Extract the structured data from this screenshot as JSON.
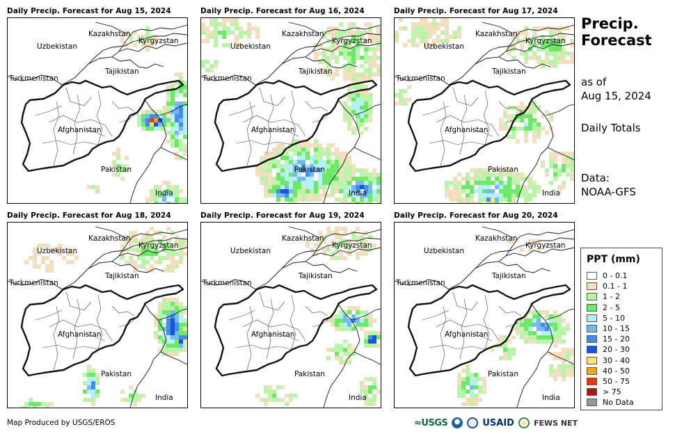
{
  "panels": [
    {
      "title": "Daily Precip. Forecast for Aug 15, 2024"
    },
    {
      "title": "Daily Precip. Forecast for Aug 16, 2024"
    },
    {
      "title": "Daily Precip. Forecast for Aug 17, 2024"
    },
    {
      "title": "Daily Precip. Forecast for Aug 18, 2024"
    },
    {
      "title": "Daily Precip. Forecast for Aug 19, 2024"
    },
    {
      "title": "Daily Precip. Forecast for Aug 20, 2024"
    }
  ],
  "countries": {
    "kazakhstan": "Kazakhstan",
    "uzbekistan": "Uzbekistan",
    "kyrgyzstan": "Kyrgyzstan",
    "tajikistan": "Tajikistan",
    "turkmenistan": "Turkmenistan",
    "afghanistan": "Afghanistan",
    "pakistan": "Pakistan",
    "india": "India"
  },
  "sidebar": {
    "title_line1": "Precip.",
    "title_line2": "Forecast",
    "asof_line1": "as of",
    "asof_line2": "Aug 15, 2024",
    "totals": "Daily Totals",
    "data_line1": "Data:",
    "data_line2": "NOAA-GFS"
  },
  "legend": {
    "title": "PPT (mm)",
    "items": [
      {
        "label": "0 - 0.1",
        "color": "#ffffff"
      },
      {
        "label": "0.1 - 1",
        "color": "#f2dfbf"
      },
      {
        "label": "1 - 2",
        "color": "#b8f5a8"
      },
      {
        "label": "2 - 5",
        "color": "#6ee867"
      },
      {
        "label": "5 - 10",
        "color": "#b4f0f5"
      },
      {
        "label": "10 - 15",
        "color": "#76b8f0"
      },
      {
        "label": "15 - 20",
        "color": "#3f8ee8"
      },
      {
        "label": "20 - 30",
        "color": "#1a55d8"
      },
      {
        "label": "30 - 40",
        "color": "#f8e27a"
      },
      {
        "label": "40 - 50",
        "color": "#f5a21c"
      },
      {
        "label": "50 - 75",
        "color": "#e8380e"
      },
      {
        "label": "> 75",
        "color": "#a81616"
      },
      {
        "label": "No Data",
        "color": "#999999"
      }
    ]
  },
  "footer": {
    "credit": "Map Produced by USGS/EROS",
    "logo_usgs": "≈USGS",
    "logo_usaid": "USAID",
    "logo_fews": "FEWS NET"
  }
}
